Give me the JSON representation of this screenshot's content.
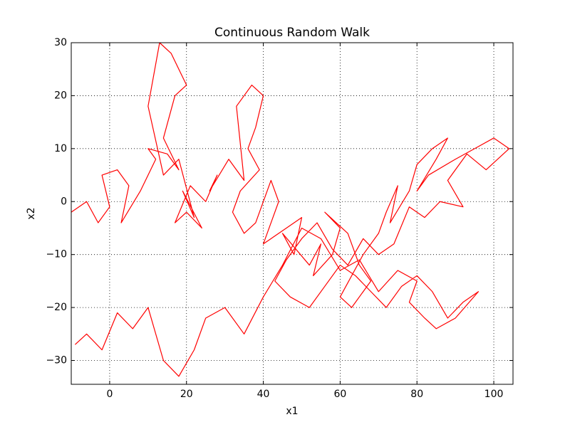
{
  "chart_data": {
    "type": "line",
    "title": "Continuous Random Walk",
    "x_label": "x1",
    "y_label": "x2",
    "color": "#ff0000",
    "grid": true,
    "xlim": [
      -10,
      105
    ],
    "ylim": [
      -34.5,
      30
    ],
    "xticks": [
      0,
      20,
      40,
      60,
      80,
      100
    ],
    "yticks": [
      {
        "value": -30,
        "label": "−30"
      },
      {
        "value": -20,
        "label": "−20"
      },
      {
        "value": -10,
        "label": "−10"
      },
      0,
      10,
      20,
      30
    ],
    "x": [
      -10,
      -6,
      -3,
      0,
      -2,
      2,
      5,
      3,
      8,
      12,
      10,
      15,
      18,
      14,
      17,
      20,
      16,
      13,
      10,
      14,
      18,
      22,
      19,
      24,
      20,
      17,
      21,
      25,
      28,
      26,
      31,
      35,
      33,
      37,
      40,
      38,
      36,
      39,
      34,
      32,
      35,
      38,
      42,
      44,
      40,
      46,
      50,
      48,
      45,
      52,
      55,
      53,
      58,
      60,
      56,
      62,
      65,
      68,
      63,
      60,
      66,
      70,
      72,
      75,
      73,
      78,
      80,
      84,
      88,
      85,
      80,
      83,
      90,
      95,
      100,
      104,
      98,
      93,
      88,
      92,
      86,
      82,
      78,
      74,
      70,
      66,
      62,
      58,
      54,
      50,
      46,
      43,
      47,
      52,
      56,
      60,
      64,
      68,
      72,
      76,
      80,
      84,
      88,
      92,
      96,
      90,
      85,
      82,
      78,
      80,
      75,
      70,
      65,
      60,
      55,
      50,
      45,
      40,
      35,
      30,
      25,
      22,
      18,
      14,
      10,
      6,
      2,
      -2,
      -6,
      -9
    ],
    "values": [
      -2,
      0,
      -4,
      -1,
      5,
      6,
      3,
      -4,
      2,
      8,
      10,
      9,
      6,
      12,
      20,
      22,
      28,
      30,
      18,
      5,
      8,
      -3,
      2,
      -5,
      -2,
      -4,
      3,
      0,
      5,
      2,
      8,
      4,
      18,
      22,
      20,
      14,
      10,
      6,
      2,
      -2,
      -6,
      -4,
      4,
      0,
      -8,
      -5,
      -3,
      -10,
      -6,
      -12,
      -8,
      -14,
      -10,
      -5,
      -2,
      -6,
      -12,
      -15,
      -20,
      -18,
      -10,
      -6,
      -2,
      3,
      -4,
      2,
      7,
      10,
      12,
      8,
      2,
      5,
      8,
      10,
      12,
      10,
      6,
      9,
      4,
      -1,
      0,
      -3,
      -1,
      -8,
      -10,
      -7,
      -12,
      -9,
      -4,
      -7,
      -11,
      -15,
      -18,
      -20,
      -16,
      -12,
      -14,
      -17,
      -20,
      -16,
      -14,
      -17,
      -22,
      -19,
      -17,
      -22,
      -24,
      -22,
      -19,
      -15,
      -13,
      -17,
      -11,
      -13,
      -7,
      -5,
      -12,
      -18,
      -25,
      -20,
      -22,
      -28,
      -33,
      -30,
      -20,
      -24,
      -21,
      -28,
      -25,
      -27
    ]
  }
}
